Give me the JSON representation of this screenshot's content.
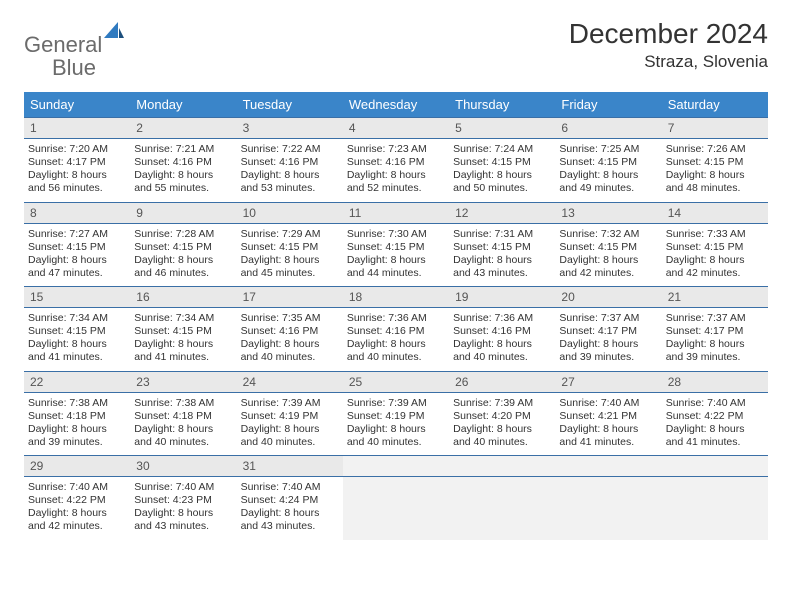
{
  "logo": {
    "word1": "General",
    "word2": "Blue"
  },
  "title": "December 2024",
  "location": "Straza, Slovenia",
  "colors": {
    "header_bg": "#3a85c9",
    "header_fg": "#ffffff",
    "daynum_bg": "#e9e9e9",
    "border": "#3a6fa6",
    "empty_bg": "#f2f2f2",
    "text": "#333333",
    "logo_gray": "#6b6b6b",
    "logo_blue": "#2f7ac0"
  },
  "day_names": [
    "Sunday",
    "Monday",
    "Tuesday",
    "Wednesday",
    "Thursday",
    "Friday",
    "Saturday"
  ],
  "weeks": [
    [
      {
        "n": "1",
        "sr": "7:20 AM",
        "ss": "4:17 PM",
        "dl": "8 hours and 56 minutes."
      },
      {
        "n": "2",
        "sr": "7:21 AM",
        "ss": "4:16 PM",
        "dl": "8 hours and 55 minutes."
      },
      {
        "n": "3",
        "sr": "7:22 AM",
        "ss": "4:16 PM",
        "dl": "8 hours and 53 minutes."
      },
      {
        "n": "4",
        "sr": "7:23 AM",
        "ss": "4:16 PM",
        "dl": "8 hours and 52 minutes."
      },
      {
        "n": "5",
        "sr": "7:24 AM",
        "ss": "4:15 PM",
        "dl": "8 hours and 50 minutes."
      },
      {
        "n": "6",
        "sr": "7:25 AM",
        "ss": "4:15 PM",
        "dl": "8 hours and 49 minutes."
      },
      {
        "n": "7",
        "sr": "7:26 AM",
        "ss": "4:15 PM",
        "dl": "8 hours and 48 minutes."
      }
    ],
    [
      {
        "n": "8",
        "sr": "7:27 AM",
        "ss": "4:15 PM",
        "dl": "8 hours and 47 minutes."
      },
      {
        "n": "9",
        "sr": "7:28 AM",
        "ss": "4:15 PM",
        "dl": "8 hours and 46 minutes."
      },
      {
        "n": "10",
        "sr": "7:29 AM",
        "ss": "4:15 PM",
        "dl": "8 hours and 45 minutes."
      },
      {
        "n": "11",
        "sr": "7:30 AM",
        "ss": "4:15 PM",
        "dl": "8 hours and 44 minutes."
      },
      {
        "n": "12",
        "sr": "7:31 AM",
        "ss": "4:15 PM",
        "dl": "8 hours and 43 minutes."
      },
      {
        "n": "13",
        "sr": "7:32 AM",
        "ss": "4:15 PM",
        "dl": "8 hours and 42 minutes."
      },
      {
        "n": "14",
        "sr": "7:33 AM",
        "ss": "4:15 PM",
        "dl": "8 hours and 42 minutes."
      }
    ],
    [
      {
        "n": "15",
        "sr": "7:34 AM",
        "ss": "4:15 PM",
        "dl": "8 hours and 41 minutes."
      },
      {
        "n": "16",
        "sr": "7:34 AM",
        "ss": "4:15 PM",
        "dl": "8 hours and 41 minutes."
      },
      {
        "n": "17",
        "sr": "7:35 AM",
        "ss": "4:16 PM",
        "dl": "8 hours and 40 minutes."
      },
      {
        "n": "18",
        "sr": "7:36 AM",
        "ss": "4:16 PM",
        "dl": "8 hours and 40 minutes."
      },
      {
        "n": "19",
        "sr": "7:36 AM",
        "ss": "4:16 PM",
        "dl": "8 hours and 40 minutes."
      },
      {
        "n": "20",
        "sr": "7:37 AM",
        "ss": "4:17 PM",
        "dl": "8 hours and 39 minutes."
      },
      {
        "n": "21",
        "sr": "7:37 AM",
        "ss": "4:17 PM",
        "dl": "8 hours and 39 minutes."
      }
    ],
    [
      {
        "n": "22",
        "sr": "7:38 AM",
        "ss": "4:18 PM",
        "dl": "8 hours and 39 minutes."
      },
      {
        "n": "23",
        "sr": "7:38 AM",
        "ss": "4:18 PM",
        "dl": "8 hours and 40 minutes."
      },
      {
        "n": "24",
        "sr": "7:39 AM",
        "ss": "4:19 PM",
        "dl": "8 hours and 40 minutes."
      },
      {
        "n": "25",
        "sr": "7:39 AM",
        "ss": "4:19 PM",
        "dl": "8 hours and 40 minutes."
      },
      {
        "n": "26",
        "sr": "7:39 AM",
        "ss": "4:20 PM",
        "dl": "8 hours and 40 minutes."
      },
      {
        "n": "27",
        "sr": "7:40 AM",
        "ss": "4:21 PM",
        "dl": "8 hours and 41 minutes."
      },
      {
        "n": "28",
        "sr": "7:40 AM",
        "ss": "4:22 PM",
        "dl": "8 hours and 41 minutes."
      }
    ],
    [
      {
        "n": "29",
        "sr": "7:40 AM",
        "ss": "4:22 PM",
        "dl": "8 hours and 42 minutes."
      },
      {
        "n": "30",
        "sr": "7:40 AM",
        "ss": "4:23 PM",
        "dl": "8 hours and 43 minutes."
      },
      {
        "n": "31",
        "sr": "7:40 AM",
        "ss": "4:24 PM",
        "dl": "8 hours and 43 minutes."
      },
      null,
      null,
      null,
      null
    ]
  ],
  "labels": {
    "sunrise": "Sunrise:",
    "sunset": "Sunset:",
    "daylight": "Daylight:"
  }
}
